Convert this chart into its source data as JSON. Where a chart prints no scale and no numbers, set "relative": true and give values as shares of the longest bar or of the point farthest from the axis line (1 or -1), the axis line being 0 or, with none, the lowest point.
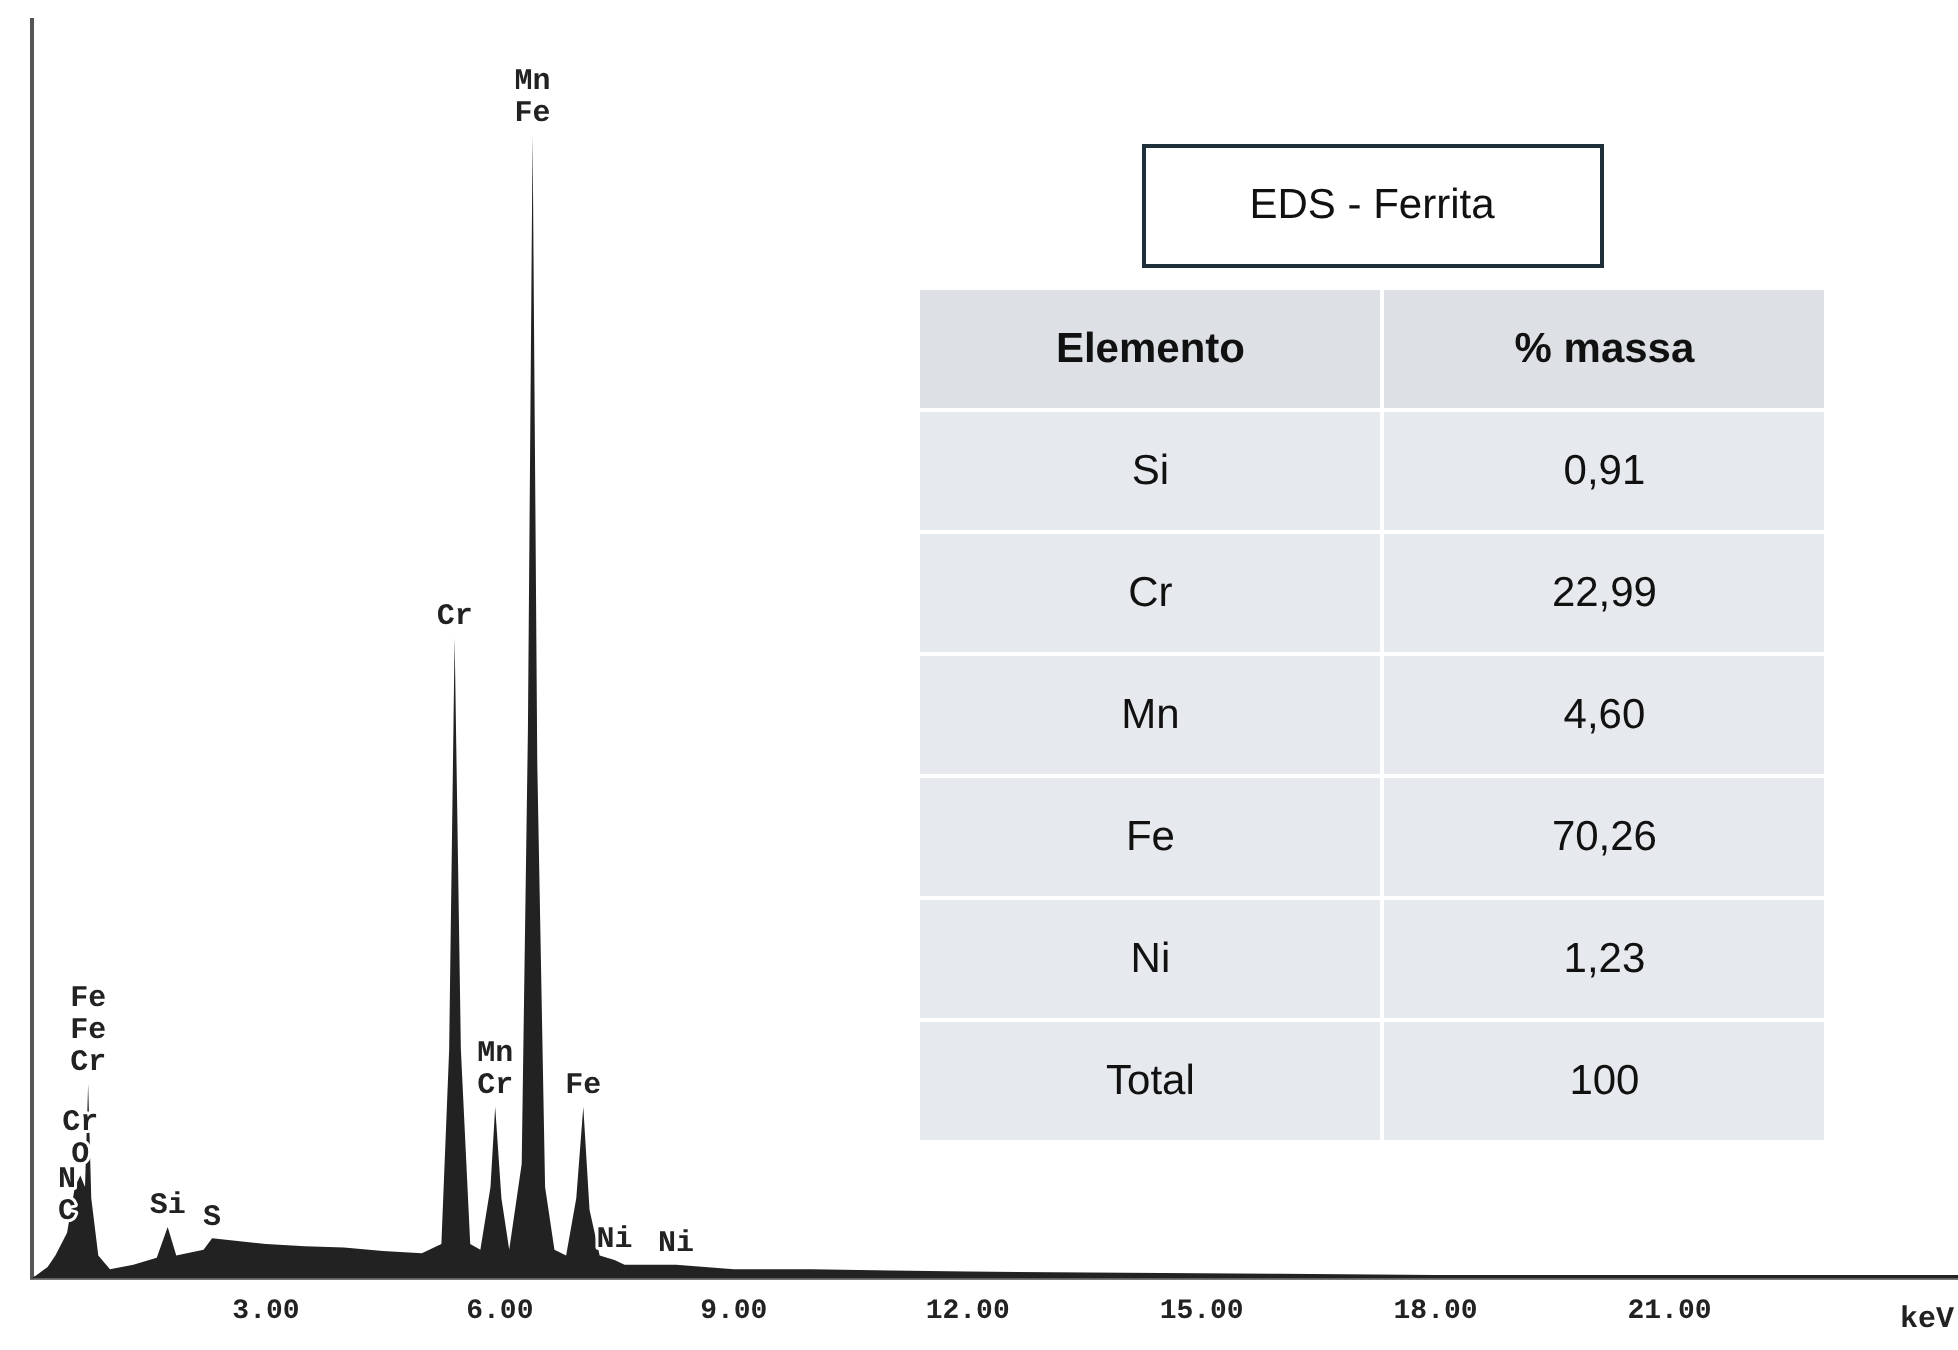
{
  "chart_data": [
    {
      "type": "area",
      "relative": true,
      "xlabel": "keV",
      "xlim": [
        0,
        24.7
      ],
      "xticks": [
        {
          "value": 3,
          "label": "3.00"
        },
        {
          "value": 6,
          "label": "6.00"
        },
        {
          "value": 9,
          "label": "9.00"
        },
        {
          "value": 12,
          "label": "12.00"
        },
        {
          "value": 15,
          "label": "15.00"
        },
        {
          "value": 18,
          "label": "18.00"
        },
        {
          "value": 21,
          "label": "21.00"
        }
      ],
      "grid": false,
      "legend": false,
      "x": [
        0,
        0.1,
        0.2,
        0.3,
        0.45,
        0.55,
        0.62,
        0.68,
        0.72,
        0.76,
        0.85,
        1.0,
        1.3,
        1.6,
        1.74,
        1.85,
        2.2,
        2.31,
        3.0,
        3.5,
        4.0,
        4.5,
        5.0,
        5.25,
        5.35,
        5.42,
        5.5,
        5.62,
        5.75,
        5.88,
        5.94,
        6.02,
        6.12,
        6.28,
        6.36,
        6.42,
        6.48,
        6.58,
        6.7,
        6.85,
        6.98,
        7.07,
        7.15,
        7.28,
        7.47,
        7.6,
        8.26,
        9.0,
        10.0,
        11.0,
        12.0,
        14.0,
        16.0,
        18.0,
        20.0,
        22.0,
        24.7
      ],
      "series": [
        {
          "color": "#222222",
          "values": [
            0,
            0.005,
            0.01,
            0.02,
            0.04,
            0.08,
            0.09,
            0.08,
            0.17,
            0.07,
            0.02,
            0.008,
            0.012,
            0.018,
            0.045,
            0.02,
            0.025,
            0.035,
            0.03,
            0.028,
            0.027,
            0.024,
            0.022,
            0.03,
            0.2,
            0.56,
            0.2,
            0.03,
            0.025,
            0.08,
            0.15,
            0.07,
            0.025,
            0.1,
            0.48,
            1,
            0.45,
            0.08,
            0.025,
            0.02,
            0.07,
            0.15,
            0.06,
            0.02,
            0.016,
            0.012,
            0.012,
            0.008,
            0.008,
            0.007,
            0.006,
            0.005,
            0.004,
            0.003,
            0.003,
            0.003,
            0.003
          ]
        }
      ],
      "annotations": [
        {
          "text": "C",
          "x": 0.45,
          "y": 0.04
        },
        {
          "text": "N",
          "x": 0.45,
          "y": 0.04
        },
        {
          "text": "O",
          "x": 0.62,
          "y": 0.09
        },
        {
          "text": "Cr",
          "x": 0.62,
          "y": 0.09
        },
        {
          "text": "Cr",
          "x": 0.72,
          "y": 0.17
        },
        {
          "text": "Fe",
          "x": 0.72,
          "y": 0.17
        },
        {
          "text": "Fe",
          "x": 0.72,
          "y": 0.17
        },
        {
          "text": "Si",
          "x": 1.74,
          "y": 0.045
        },
        {
          "text": "S",
          "x": 2.31,
          "y": 0.035
        },
        {
          "text": "Cr",
          "x": 5.42,
          "y": 0.56
        },
        {
          "text": "Cr",
          "x": 5.94,
          "y": 0.15
        },
        {
          "text": "Mn",
          "x": 5.94,
          "y": 0.15
        },
        {
          "text": "Fe",
          "x": 6.42,
          "y": 1
        },
        {
          "text": "Mn",
          "x": 6.42,
          "y": 1
        },
        {
          "text": "Fe",
          "x": 7.07,
          "y": 0.15
        },
        {
          "text": "Ni",
          "x": 7.47,
          "y": 0.016
        },
        {
          "text": "Ni",
          "x": 8.26,
          "y": 0.012
        }
      ]
    },
    {
      "type": "other",
      "title": "EDS - Ferrita",
      "xlabel": "Elemento",
      "ylabel": "% massa",
      "categories": [
        "Si",
        "Cr",
        "Mn",
        "Fe",
        "Ni",
        "Total"
      ],
      "values": [
        0.91,
        22.99,
        4.6,
        70.26,
        1.23,
        100
      ],
      "value_labels": [
        "0,91",
        "22,99",
        "4,60",
        "70,26",
        "1,23",
        "100"
      ]
    }
  ]
}
